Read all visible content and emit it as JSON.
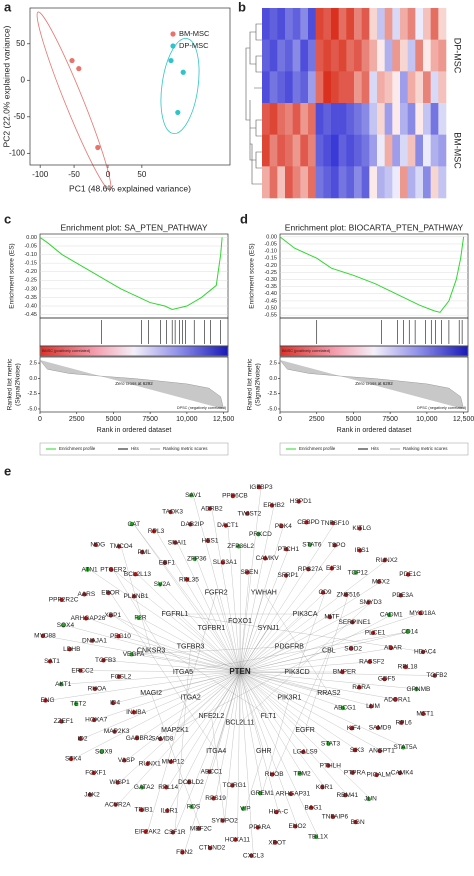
{
  "panel_labels": [
    "a",
    "b",
    "c",
    "d",
    "e"
  ],
  "chart_data": [
    {
      "type": "scatter",
      "x_label": "PC1 (48.6% explained variance)",
      "y_label": "PC2 (22.0% explained variance)",
      "xlim": [
        -115,
        180
      ],
      "ylim": [
        -116,
        99
      ],
      "xticks": [
        -100,
        -50,
        0,
        50
      ],
      "yticks": [
        50,
        0,
        -50,
        -100
      ],
      "series": [
        {
          "name": "BM-MSC",
          "color": "#e8736c",
          "x": [
            -53,
            -43,
            -15
          ],
          "values": [
            27,
            16,
            -92
          ]
        },
        {
          "name": "DP-MSC",
          "color": "#2ec4c9",
          "x": [
            93,
            111,
            103
          ],
          "values": [
            27,
            11,
            -44
          ]
        }
      ]
    },
    {
      "type": "heatmap",
      "row_groups": [
        "DP-MSC",
        "BM-MSC"
      ],
      "low_color": "#3a3ad6",
      "high_color": "#d9301f",
      "values": [
        [
          -0.9,
          -0.8,
          -0.9,
          -0.7,
          -0.8,
          -0.6,
          -0.9,
          0.9,
          0.8,
          1,
          0.7,
          0.9,
          0.6,
          0.8,
          0.2,
          -0.3,
          0.5,
          -0.2,
          0.4,
          0.6,
          -0.1,
          0.3,
          0.7,
          0.2
        ],
        [
          -0.8,
          -0.9,
          -0.7,
          -0.8,
          -0.6,
          -0.9,
          -0.7,
          0.8,
          0.9,
          0.8,
          0.9,
          0.7,
          0.8,
          0.6,
          0.4,
          0.1,
          -0.4,
          0.5,
          0.2,
          -0.3,
          0.6,
          0.1,
          0.4,
          0.5
        ],
        [
          -0.9,
          -0.7,
          -0.8,
          -0.9,
          -0.7,
          -0.8,
          -0.5,
          0.7,
          1,
          0.9,
          0.8,
          0.8,
          0.5,
          0.7,
          -0.2,
          0.4,
          0.3,
          0.1,
          -0.5,
          0.4,
          0.2,
          0.6,
          -0.2,
          0.3
        ],
        [
          0.8,
          0.9,
          0.7,
          0.6,
          0.8,
          0.5,
          0.7,
          -0.9,
          -0.8,
          -0.9,
          -0.9,
          -0.8,
          -0.7,
          -0.6,
          -0.3,
          0.2,
          -0.5,
          0.1,
          -0.4,
          -0.6,
          0.1,
          -0.3,
          -0.7,
          -0.2
        ],
        [
          0.9,
          0.6,
          0.8,
          0.7,
          0.5,
          0.8,
          0.6,
          -0.8,
          -0.9,
          -1,
          -0.8,
          -0.9,
          -0.8,
          -0.7,
          -0.5,
          -0.1,
          0.4,
          -0.5,
          -0.2,
          0.3,
          -0.6,
          -0.1,
          -0.4,
          -0.5
        ],
        [
          0.4,
          0.7,
          0.3,
          0.8,
          0.6,
          0.4,
          0.7,
          -0.7,
          -0.8,
          -0.9,
          -0.7,
          -0.8,
          -0.6,
          -0.8,
          0.1,
          -0.4,
          -0.3,
          -0.1,
          0.5,
          -0.4,
          -0.2,
          -0.6,
          0.2,
          -0.3
        ]
      ]
    },
    {
      "type": "gsea",
      "title": "Enrichment plot: SA_PTEN_PATHWAY",
      "y_label": "Enrichment score (ES)",
      "y2_label": [
        "Ranked list metric",
        "(Signal2Noise)"
      ],
      "x_label": "Rank in ordered dataset",
      "xlim": [
        0,
        12800
      ],
      "xticks": [
        0,
        2500,
        5000,
        7500,
        {
          "value": 10000,
          "label": "10,000"
        },
        {
          "value": 12500,
          "label": "12,500"
        }
      ],
      "ylim": [
        -0.47,
        0.02
      ],
      "yticks": [
        {
          "value": 0,
          "label": "0.00"
        },
        -0.05,
        {
          "value": -0.1,
          "label": "-0.10"
        },
        -0.15,
        {
          "value": -0.2,
          "label": "-0.20"
        },
        -0.25,
        {
          "value": -0.3,
          "label": "-0.30"
        },
        -0.35,
        {
          "value": -0.4,
          "label": "-0.40"
        },
        -0.45
      ],
      "enrichment": {
        "name": "Enrichment profile",
        "color": "#2ed82e",
        "x": [
          0,
          500,
          1500,
          2500,
          3500,
          4500,
          5500,
          6500,
          7500,
          8500,
          9000,
          10000,
          11000,
          12000,
          12300,
          12400
        ],
        "values": [
          0,
          -0.03,
          -0.1,
          -0.15,
          -0.2,
          -0.25,
          -0.3,
          -0.34,
          -0.38,
          -0.4,
          -0.42,
          -0.4,
          -0.35,
          -0.28,
          -0.1,
          0
        ]
      },
      "hits": {
        "name": "Hits",
        "x": [
          4200,
          6900,
          7400,
          8200,
          8600,
          9000,
          9200,
          9500,
          9700,
          9900,
          10500,
          11200,
          11600,
          12300
        ]
      },
      "ranked": {
        "name": "Ranking metric scores",
        "ylim": [
          -5.5,
          3.5
        ],
        "yticks": [
          2.5,
          {
            "value": 0,
            "label": "0.0"
          },
          -2.5,
          {
            "value": -5,
            "label": "-5.0"
          }
        ],
        "x": [
          0,
          500,
          2000,
          4000,
          6292,
          8000,
          10000,
          11500,
          12300,
          12500
        ],
        "values": [
          3,
          1.5,
          0.8,
          0.4,
          0,
          -0.4,
          -0.9,
          -1.6,
          -3,
          -5
        ]
      },
      "zero_cross": "Zero cross at 6292",
      "pos_label": "BMSC (positively correlated)",
      "neg_label": "DPSC (negatively correlated)"
    },
    {
      "type": "gsea",
      "title": "Enrichment plot: BIOCARTA_PTEN_PATHWAY",
      "y_label": "Enrichment score (ES)",
      "y2_label": [
        "Ranked list metric",
        "(Signal2Noise)"
      ],
      "x_label": "Rank in ordered dataset",
      "xlim": [
        0,
        12800
      ],
      "xticks": [
        0,
        2500,
        5000,
        7500,
        {
          "value": 10000,
          "label": "10,000"
        },
        {
          "value": 12500,
          "label": "12,500"
        }
      ],
      "ylim": [
        -0.57,
        0.02
      ],
      "yticks": [
        {
          "value": 0,
          "label": "0.00"
        },
        -0.05,
        {
          "value": -0.1,
          "label": "-0.10"
        },
        -0.15,
        {
          "value": -0.2,
          "label": "-0.20"
        },
        -0.25,
        {
          "value": -0.3,
          "label": "-0.30"
        },
        -0.35,
        {
          "value": -0.4,
          "label": "-0.40"
        },
        -0.45,
        {
          "value": -0.5,
          "label": "-0.50"
        },
        -0.55
      ],
      "enrichment": {
        "name": "Enrichment profile",
        "color": "#2ed82e",
        "x": [
          0,
          1000,
          2500,
          3500,
          5000,
          6500,
          7500,
          8500,
          9500,
          10500,
          10900,
          11500,
          12000,
          12300,
          12500
        ],
        "values": [
          0,
          -0.08,
          -0.15,
          -0.22,
          -0.27,
          -0.33,
          -0.38,
          -0.43,
          -0.48,
          -0.52,
          -0.53,
          -0.45,
          -0.3,
          -0.15,
          0
        ]
      },
      "hits": {
        "name": "Hits",
        "x": [
          2500,
          6900,
          8000,
          8400,
          8800,
          9200,
          9900,
          10300,
          10600,
          11000,
          11500,
          12200,
          12400
        ]
      },
      "ranked": {
        "name": "Ranking metric scores",
        "ylim": [
          -5.5,
          3.5
        ],
        "yticks": [
          2.5,
          {
            "value": 0,
            "label": "0.0"
          },
          -2.5,
          {
            "value": -5,
            "label": "-5.0"
          }
        ],
        "x": [
          0,
          500,
          2000,
          4000,
          6292,
          8000,
          10000,
          11500,
          12300,
          12500
        ],
        "values": [
          3,
          1.5,
          0.8,
          0.4,
          0,
          -0.4,
          -0.9,
          -1.6,
          -3,
          -5
        ]
      },
      "zero_cross": "Zero cross at 6292",
      "pos_label": "BMSC (positively correlated)",
      "neg_label": "DPSC (negatively correlated)"
    }
  ],
  "network": {
    "hub": "PTEN",
    "hub_color": "#2323c8",
    "red_color": "#a51c1c",
    "green_color": "#2aa02a",
    "blue_labels": [
      "FOXO1",
      "YWHAH",
      "SYNJ1",
      "PIK3CA",
      "PDGFRB",
      "CBL",
      "PIK3CD",
      "RRAS2",
      "PIK3R1",
      "EGFR",
      "FLT1",
      "GHR",
      "BCL2L11",
      "ITGA4",
      "NFE2L2",
      "MAP2K1",
      "ITGA2",
      "MAGI2",
      "ITGA5",
      "CNKSR3",
      "TGFBR3",
      "FGFRL1",
      "TGFBR1",
      "FGFR2"
    ],
    "red_nodes": [
      "BMPER",
      "HES1",
      "ID2",
      "BGN",
      "ARHGAP31",
      "MSX2",
      "NOG",
      "EBF1",
      "WISP1",
      "CAMK4",
      "PTHLH",
      "TSPO",
      "PPP2R2C",
      "PLXNB1",
      "IL1R1",
      "MST1",
      "KIF4",
      "PDK4",
      "SAT1",
      "PEG10",
      "SYNPO2",
      "HDAC4",
      "RARA",
      "DACT1",
      "ZZEF1",
      "FOSL2",
      "HLA-C",
      "PDE3A",
      "SOD2",
      "SNAI1",
      "FOXF1",
      "INHBA",
      "KSR1",
      "IRS1",
      "MITF",
      "BCL2L13",
      "TRIB1",
      "SAMD8",
      "SIK3",
      "CEBPD",
      "MYD88",
      "XBP1",
      "MEF2C",
      "TGFB2",
      "LUM",
      "TWIST2",
      "ENG",
      "TGFB3",
      "PPARA",
      "MYO18A",
      "RASSF2",
      "DAB2IP",
      "STK4",
      "ID4",
      "BAG1",
      "RUNX2",
      "SERPINE1",
      "PML",
      "ACVR2A",
      "GABBR2",
      "PTPRA",
      "TNFSF10",
      "CD9",
      "EPOR",
      "CSF1R",
      "MMP12",
      "SAMD9",
      "EPHB2",
      "SFRP1",
      "DNAJA1",
      "HOXA11",
      "ABCC1",
      "GDF5",
      "ADRB2",
      "SPEN",
      "RHOA",
      "ENO2",
      "PDE1C",
      "PLCE1",
      "RPL3",
      "JAK2",
      "MAP2K3",
      "RBM41",
      "KITLG",
      "ZNF516",
      "PTGER2",
      "EIF2AK2",
      "RUNX1",
      "ANGPT1",
      "HSPD1",
      "RPS27A",
      "ARHGAP26",
      "CTNND2",
      "DCBLD2",
      "ADORA1",
      "PPP6CB",
      "CAMKV",
      "ERCC2",
      "XPOT",
      "TCIRG1",
      "ADAR",
      "TAOK3",
      "SLC3A1",
      "HOXA7",
      "TNFAIP6",
      "RHOB",
      "SMYD3",
      "TMCO4",
      "RPL35",
      "VASP",
      "PICALM",
      "LGALS9",
      "EIF3I",
      "AARS",
      "FBN2",
      "RPL14",
      "RPL6",
      "IGFBP3",
      "PTCH1",
      "LDHB",
      "CXCL3",
      "RPS19",
      "RPL18"
    ],
    "green_nodes": [
      "SAV1",
      "ZFP36L2",
      "TET2",
      "TBL1X",
      "GREM1",
      "CADM1",
      "CAT",
      "ZFP36",
      "SOX9",
      "JUN",
      "TPM2",
      "TCP12",
      "ATN1",
      "SV2A",
      "GATA2",
      "STAT5A",
      "STAT3",
      "STAT6",
      "SOX4",
      "F2R",
      "FOS",
      "GPNMB",
      "ABCG1",
      "PRKCD",
      "AKT1",
      "VEGFA",
      "VIP",
      "CD14"
    ]
  }
}
